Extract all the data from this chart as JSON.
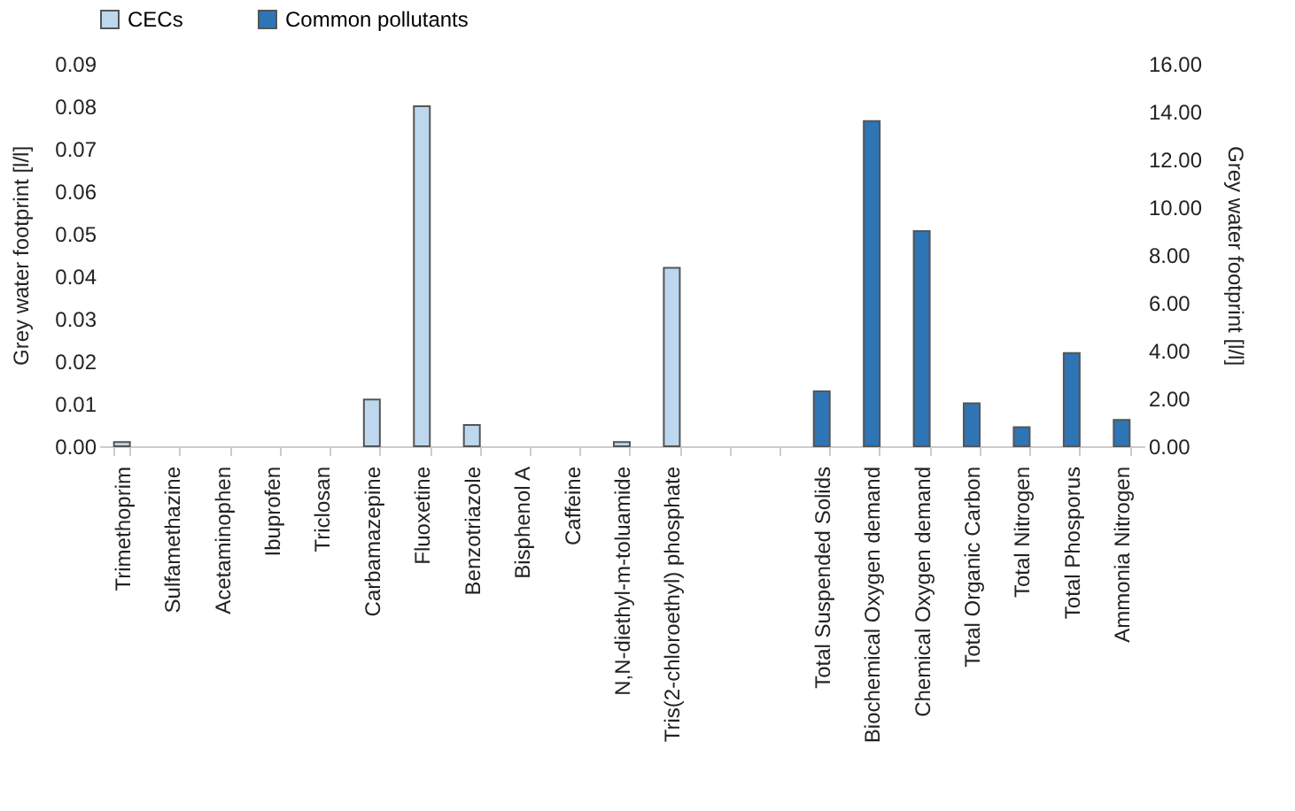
{
  "chart_data": {
    "type": "bar",
    "categories": [
      "Trimethoprim",
      "Sulfamethazine",
      "Acetaminophen",
      "Ibuprofen",
      "Triclosan",
      "Carbamazepine",
      "Fluoxetine",
      "Benzotriazole",
      "Bisphenol A",
      "Caffeine",
      "N,N-diethyl-m-toluamide",
      "Tris(2-chloroethyl) phosphate",
      null,
      null,
      "Total Suspended Solids",
      "Biochemical Oxygen demand",
      "Chemical Oxygen demand",
      "Total Organic Carbon",
      "Total Nitrogen",
      "Total Phosporus",
      "Ammonia Nitrogen"
    ],
    "series": [
      {
        "name": "CECs",
        "color": "#bdd7ee",
        "axis": "y",
        "values": [
          0.001,
          null,
          null,
          null,
          null,
          0.011,
          0.08,
          0.005,
          null,
          null,
          0.001,
          0.042,
          null,
          null,
          null,
          null,
          null,
          null,
          null,
          null,
          null
        ]
      },
      {
        "name": "Common pollutants",
        "color": "#2e75b6",
        "axis": "y2",
        "values": [
          null,
          null,
          null,
          null,
          null,
          null,
          null,
          null,
          null,
          null,
          null,
          null,
          null,
          null,
          2.3,
          13.6,
          9.0,
          1.8,
          0.8,
          3.9,
          1.1
        ]
      }
    ],
    "ylabel": "Grey water footprint [l/l]",
    "y2label": "Grey water footprint [l/l]",
    "ylim": [
      0,
      0.09
    ],
    "yticks": [
      {
        "value": 0,
        "label": "0.00"
      },
      {
        "value": 0.01,
        "label": "0.01"
      },
      {
        "value": 0.02,
        "label": "0.02"
      },
      {
        "value": 0.03,
        "label": "0.03"
      },
      {
        "value": 0.04,
        "label": "0.04"
      },
      {
        "value": 0.05,
        "label": "0.05"
      },
      {
        "value": 0.06,
        "label": "0.06"
      },
      {
        "value": 0.07,
        "label": "0.07"
      },
      {
        "value": 0.08,
        "label": "0.08"
      },
      {
        "value": 0.09,
        "label": "0.09"
      }
    ],
    "y2lim": [
      0,
      16
    ],
    "y2ticks": [
      {
        "value": 0,
        "label": "0.00"
      },
      {
        "value": 2,
        "label": "2.00"
      },
      {
        "value": 4,
        "label": "4.00"
      },
      {
        "value": 6,
        "label": "6.00"
      },
      {
        "value": 8,
        "label": "8.00"
      },
      {
        "value": 10,
        "label": "10.00"
      },
      {
        "value": 12,
        "label": "12.00"
      },
      {
        "value": 14,
        "label": "14.00"
      },
      {
        "value": 16,
        "label": "16.00"
      }
    ],
    "grid": false,
    "legend": "top"
  }
}
